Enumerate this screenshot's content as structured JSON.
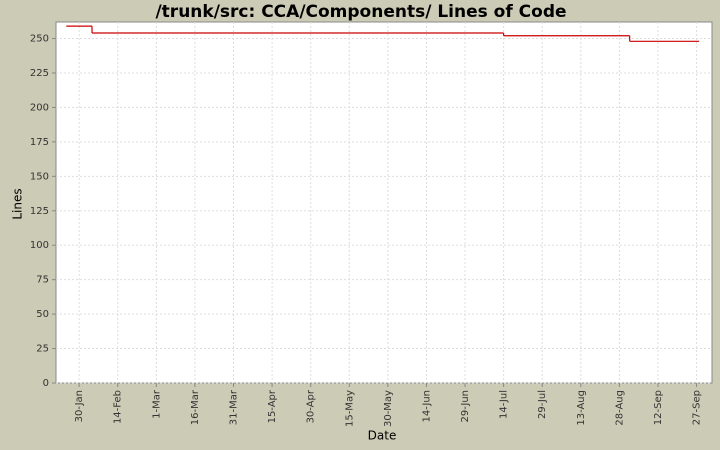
{
  "chart_data": {
    "type": "step-line",
    "title": "/trunk/src: CCA/Components/ Lines of Code",
    "x_label": "Date",
    "y_label": "Lines",
    "x": [
      "25-Jan",
      "4-Feb",
      "14-Jul",
      "1-Sep",
      "28-Sep"
    ],
    "series": [
      {
        "name": "Lines",
        "color": "#cc0000",
        "values": [
          259,
          254,
          252,
          248,
          248
        ]
      }
    ],
    "xlim": [
      "21-Jan",
      "3-Oct"
    ],
    "xticks": [
      "30-Jan",
      "14-Feb",
      "1-Mar",
      "16-Mar",
      "31-Mar",
      "15-Apr",
      "30-Apr",
      "15-May",
      "30-May",
      "14-Jun",
      "29-Jun",
      "14-Jul",
      "29-Jul",
      "13-Aug",
      "28-Aug",
      "12-Sep",
      "27-Sep"
    ],
    "ylim": [
      0,
      262
    ],
    "yticks": [
      0,
      25,
      50,
      75,
      100,
      125,
      150,
      175,
      200,
      225,
      250
    ],
    "grid": true
  }
}
